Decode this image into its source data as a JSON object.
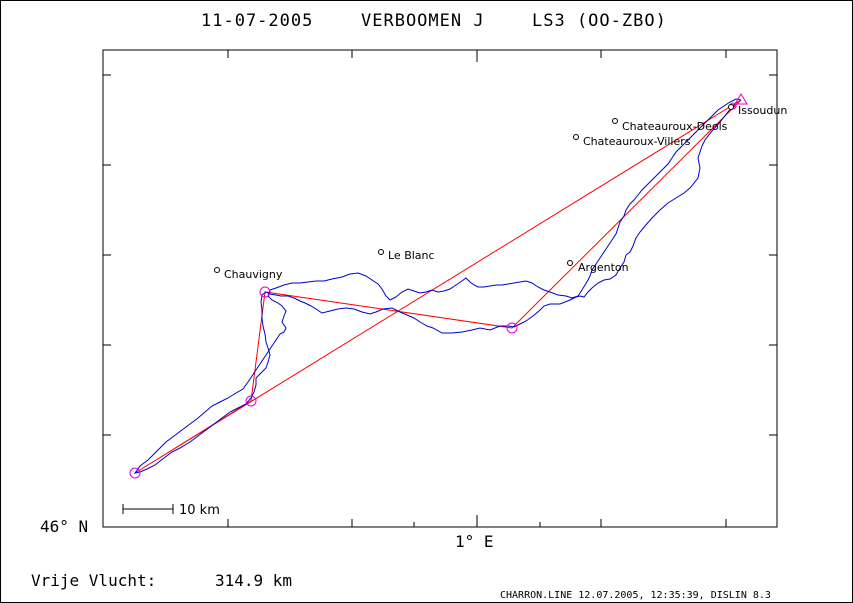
{
  "title": {
    "date": "11-07-2005",
    "pilot": "VERBOOMEN J",
    "glider": "LS3 (OO-ZBO)"
  },
  "axes": {
    "lat_label": "46° N",
    "lon_label": "1° E"
  },
  "scale_label": "10 km",
  "towns": [
    {
      "name": "Issoudun"
    },
    {
      "name": "Chateauroux-Deols"
    },
    {
      "name": "Chateauroux-Villers"
    },
    {
      "name": "Le Blanc"
    },
    {
      "name": "Chauvigny"
    },
    {
      "name": "Argenton"
    }
  ],
  "task": {
    "start": "Issoudun",
    "legs": 5
  },
  "result": {
    "label": "Vrije Vlucht:",
    "distance": "314.9 km"
  },
  "footer": "CHARRON.LINE 12.07.2005, 12:35:39, DISLIN 8.3",
  "colors": {
    "track": "#0000cc",
    "task": "#ff0000",
    "turnpoint": "#dd00dd",
    "frame": "#000000"
  }
}
